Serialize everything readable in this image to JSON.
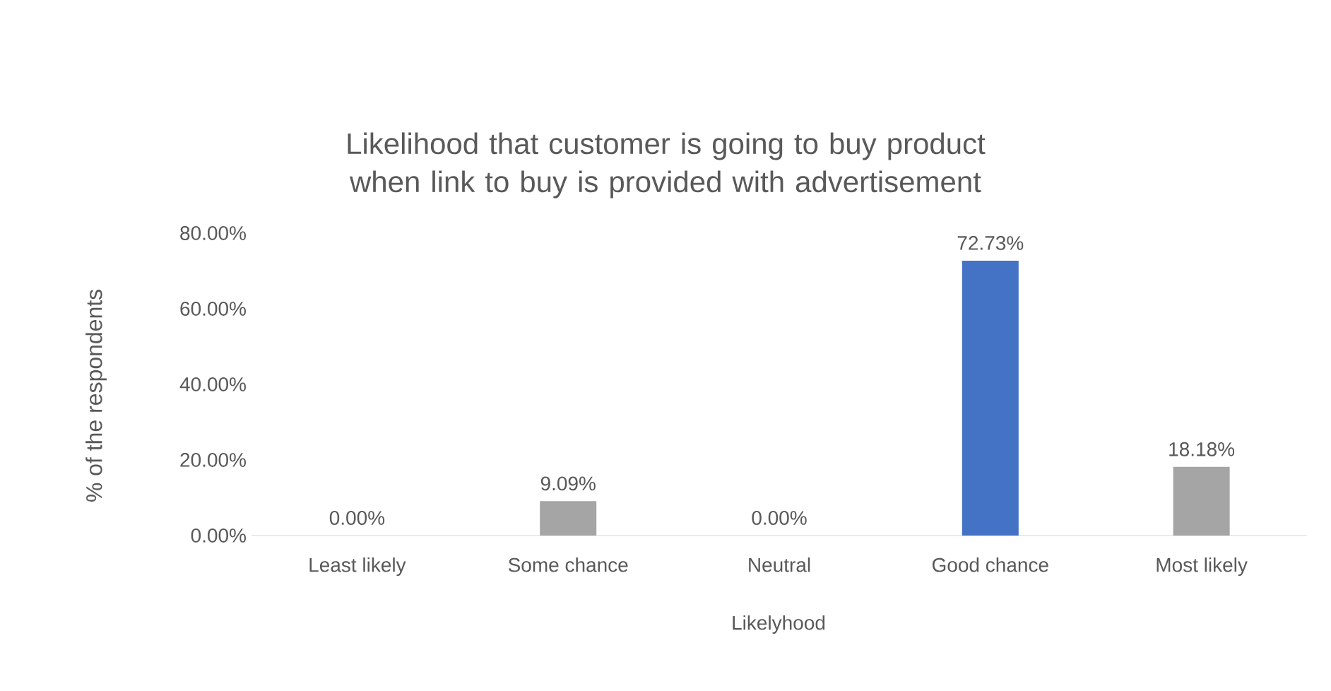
{
  "chart_data": {
    "type": "bar",
    "title": "Likelihood that customer is going to buy product when link to buy is provided with advertisement",
    "xlabel": "Likelyhood",
    "ylabel": "% of the respondents",
    "categories": [
      "Least likely",
      "Some chance",
      "Neutral",
      "Good chance",
      "Most likely"
    ],
    "values": [
      0,
      9.09,
      0,
      72.73,
      18.18
    ],
    "colors": [
      "#a5a5a5",
      "#a5a5a5",
      "#a5a5a5",
      "#4472c4",
      "#a5a5a5"
    ],
    "value_labels": [
      "0.00%",
      "9.09%",
      "0.00%",
      "72.73%",
      "18.18%"
    ],
    "ylim": [
      0,
      80
    ],
    "yticks": [
      {
        "value": 0,
        "label": "0.00%"
      },
      {
        "value": 20,
        "label": "20.00%"
      },
      {
        "value": 40,
        "label": "40.00%"
      },
      {
        "value": 60,
        "label": "60.00%"
      },
      {
        "value": 80,
        "label": "80.00%"
      }
    ]
  }
}
